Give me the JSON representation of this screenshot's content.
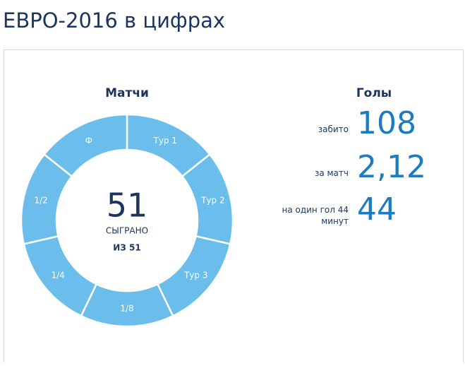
{
  "header": {
    "title": "ЕВРО-2016 в цифрах"
  },
  "matches": {
    "title": "Матчи",
    "played": "51",
    "played_label": "СЫГРАНО",
    "total": "ИЗ 51",
    "segments": [
      "Тур 1",
      "Тур 2",
      "Тур 3",
      "1/8",
      "1/4",
      "1/2",
      "Ф"
    ]
  },
  "goals": {
    "title": "Голы",
    "stats": [
      {
        "label": "забито",
        "value": "108"
      },
      {
        "label": "за матч",
        "value": "2,12"
      },
      {
        "label": "на один гол 44 минут",
        "value": "44"
      }
    ]
  }
}
